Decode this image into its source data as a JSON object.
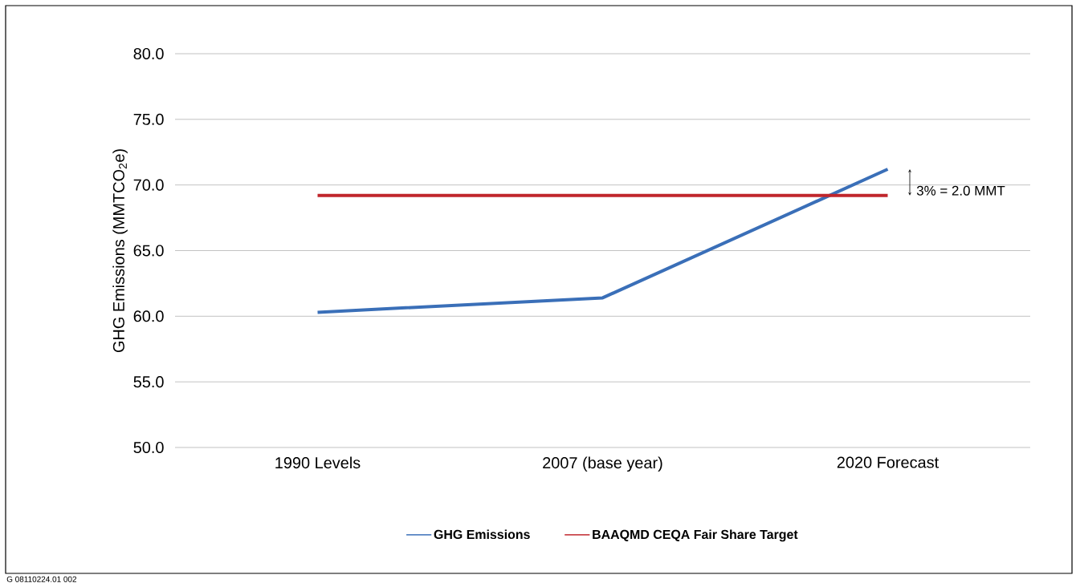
{
  "chart_data": {
    "type": "line",
    "categories": [
      "1990 Levels",
      "2007 (base year)",
      "2020 Forecast"
    ],
    "ylabel": "GHG Emissions (MMTCO$_{2}$e)",
    "series": [
      {
        "name": "GHG Emissions",
        "color": "#3a6fb8",
        "values": [
          60.3,
          61.4,
          71.2
        ]
      },
      {
        "name": "BAAQMD CEQA Fair Share Target",
        "color": "#c0262c",
        "values": [
          69.2,
          69.2,
          69.2
        ]
      }
    ],
    "ylim": [
      50,
      80
    ],
    "yticks": [
      {
        "value": 50,
        "label": "50.0"
      },
      {
        "value": 55,
        "label": "55.0"
      },
      {
        "value": 60,
        "label": "60.0"
      },
      {
        "value": 65,
        "label": "65.0"
      },
      {
        "value": 70,
        "label": "70.0"
      },
      {
        "value": 75,
        "label": "75.0"
      },
      {
        "value": 80,
        "label": "80.0"
      }
    ],
    "grid": "y",
    "legend": "bottom",
    "marker": "none",
    "line_style": "solid",
    "annotations": [
      "3% = 2.0 MMT",
      "G 08110224.01 002"
    ]
  }
}
